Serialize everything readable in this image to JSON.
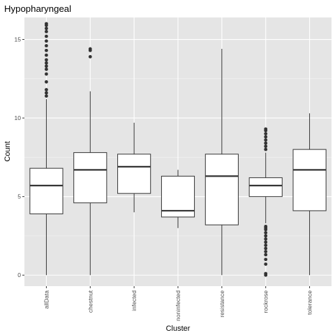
{
  "chart_data": {
    "type": "boxplot",
    "title": "Hypopharyngeal",
    "xlabel": "Cluster",
    "ylabel": "Count",
    "ylim": [
      -0.7,
      16.4
    ],
    "yticks": [
      0,
      5,
      10,
      15
    ],
    "ytick_labels": [
      "0",
      "5",
      "10",
      "15"
    ],
    "grid": true,
    "legend": "none",
    "colors": {
      "panel": "#e5e5e5",
      "grid_major": "#ffffff",
      "box_fill": "#ffffff",
      "box_line": "#333333",
      "outlier": "#333333"
    },
    "categories": [
      "allData",
      "chestnut",
      "infected",
      "noninfected",
      "resistance",
      "rockrose",
      "tolerance"
    ],
    "boxes": [
      {
        "label": "allData",
        "whisker_low": 0,
        "q1": 3.9,
        "median": 5.7,
        "q3": 6.8,
        "whisker_high": 11.2,
        "outliers": [
          11.4,
          11.6,
          11.8,
          12.3,
          12.8,
          13.1,
          13.3,
          13.5,
          13.7,
          14.0,
          14.3,
          14.6,
          14.9,
          15.2,
          15.5,
          15.7,
          15.9,
          16.0
        ]
      },
      {
        "label": "chestnut",
        "whisker_low": 0,
        "q1": 4.6,
        "median": 6.7,
        "q3": 7.8,
        "whisker_high": 11.7,
        "outliers": [
          13.9,
          14.3,
          14.4
        ]
      },
      {
        "label": "infected",
        "whisker_low": 4.0,
        "q1": 5.2,
        "median": 6.9,
        "q3": 7.7,
        "whisker_high": 9.7,
        "outliers": []
      },
      {
        "label": "noninfected",
        "whisker_low": 3.0,
        "q1": 3.7,
        "median": 4.1,
        "q3": 6.3,
        "whisker_high": 6.7,
        "outliers": []
      },
      {
        "label": "resistance",
        "whisker_low": 0,
        "q1": 3.2,
        "median": 6.3,
        "q3": 7.7,
        "whisker_high": 14.4,
        "outliers": []
      },
      {
        "label": "rockrose",
        "whisker_low": 3.3,
        "q1": 5.0,
        "median": 5.7,
        "q3": 6.2,
        "whisker_high": 7.8,
        "outliers": [
          0,
          0.1,
          0.7,
          1.0,
          1.3,
          1.5,
          1.7,
          1.9,
          2.1,
          2.3,
          2.5,
          2.7,
          2.9,
          3.0,
          3.1,
          8.0,
          8.2,
          8.4,
          8.6,
          8.8,
          9.0,
          9.2,
          9.3
        ]
      },
      {
        "label": "tolerance",
        "whisker_low": 0,
        "q1": 4.1,
        "median": 6.7,
        "q3": 8.0,
        "whisker_high": 10.3,
        "outliers": []
      }
    ]
  }
}
